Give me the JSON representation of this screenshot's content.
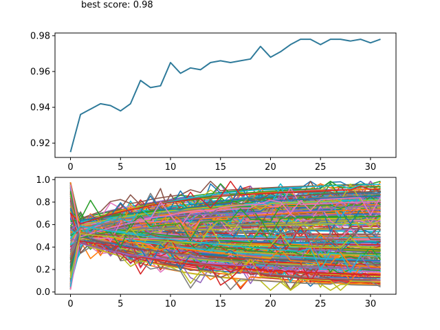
{
  "title_overlay": "best score: 0.98",
  "chart_data": [
    {
      "type": "line",
      "title": "",
      "xlabel": "",
      "ylabel": "",
      "xlim": [
        -1.55,
        32.55
      ],
      "ylim": [
        0.912,
        0.9815
      ],
      "xticks": [
        0,
        5,
        10,
        15,
        20,
        25,
        30
      ],
      "yticks": [
        0.92,
        0.94,
        0.96,
        0.98
      ],
      "grid": false,
      "color": "#2e7a9a",
      "series": [
        {
          "x": [
            0,
            1,
            2,
            3,
            4,
            5,
            6,
            7,
            8,
            9,
            10,
            11,
            12,
            13,
            14,
            15,
            16,
            17,
            18,
            19,
            20,
            21,
            22,
            23,
            24,
            25,
            26,
            27,
            28,
            29,
            30,
            31
          ],
          "values": [
            0.915,
            0.936,
            0.939,
            0.942,
            0.941,
            0.938,
            0.942,
            0.955,
            0.951,
            0.952,
            0.965,
            0.959,
            0.962,
            0.961,
            0.965,
            0.966,
            0.965,
            0.966,
            0.967,
            0.974,
            0.968,
            0.971,
            0.975,
            0.978,
            0.978,
            0.975,
            0.978,
            0.978,
            0.977,
            0.978,
            0.976,
            0.978
          ]
        }
      ]
    },
    {
      "type": "line",
      "title": "",
      "xlabel": "",
      "ylabel": "",
      "xlim": [
        -1.55,
        32.55
      ],
      "ylim": [
        -0.02,
        1.02
      ],
      "xticks": [
        0,
        5,
        10,
        15,
        20,
        25,
        30
      ],
      "yticks": [
        0.0,
        0.2,
        0.4,
        0.6,
        0.8,
        1.0
      ],
      "grid": false,
      "colors": [
        "#1f77b4",
        "#ff7f0e",
        "#2ca02c",
        "#d62728",
        "#9467bd",
        "#8c564b",
        "#e377c2",
        "#7f7f7f",
        "#bcbd22",
        "#17becf"
      ],
      "series_count": 320,
      "length": 32,
      "note_on_values": ""
    }
  ]
}
